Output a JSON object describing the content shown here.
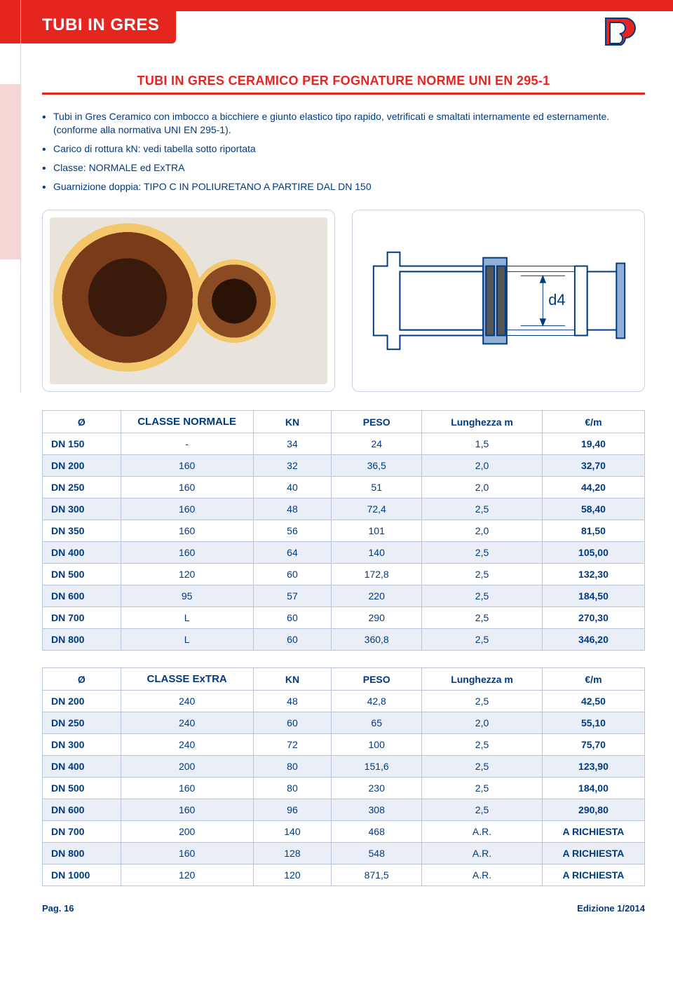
{
  "header": {
    "section_title": "TUBI IN GRES",
    "subtitle": "TUBI IN GRES CERAMICO PER FOGNATURE NORME UNI EN 295-1"
  },
  "bullets": [
    "Tubi in Gres Ceramico con imbocco a bicchiere e giunto elastico tipo rapido, vetrificati e smaltati internamente ed esternamente. (conforme alla normativa UNI EN 295-1).",
    "Carico di rottura kN: vedi tabella sotto riportata",
    "Classe: NORMALE ed ExTRA",
    "Guarnizione doppia: TIPO C IN POLIURETANO A PARTIRE DAL DN 150"
  ],
  "diagram": {
    "label": "d4"
  },
  "tables": {
    "normale": {
      "headers": [
        "Ø",
        "CLASSE NORMALE",
        "KN",
        "PESO",
        "Lunghezza m",
        "€/m"
      ],
      "rows": [
        [
          "DN 150",
          "-",
          "34",
          "24",
          "1,5",
          "19,40"
        ],
        [
          "DN 200",
          "160",
          "32",
          "36,5",
          "2,0",
          "32,70"
        ],
        [
          "DN 250",
          "160",
          "40",
          "51",
          "2,0",
          "44,20"
        ],
        [
          "DN 300",
          "160",
          "48",
          "72,4",
          "2,5",
          "58,40"
        ],
        [
          "DN 350",
          "160",
          "56",
          "101",
          "2,0",
          "81,50"
        ],
        [
          "DN 400",
          "160",
          "64",
          "140",
          "2,5",
          "105,00"
        ],
        [
          "DN 500",
          "120",
          "60",
          "172,8",
          "2,5",
          "132,30"
        ],
        [
          "DN 600",
          "95",
          "57",
          "220",
          "2,5",
          "184,50"
        ],
        [
          "DN 700",
          "L",
          "60",
          "290",
          "2,5",
          "270,30"
        ],
        [
          "DN 800",
          "L",
          "60",
          "360,8",
          "2,5",
          "346,20"
        ]
      ]
    },
    "extra": {
      "headers": [
        "Ø",
        "CLASSE ExTRA",
        "KN",
        "PESO",
        "Lunghezza m",
        "€/m"
      ],
      "rows": [
        [
          "DN 200",
          "240",
          "48",
          "42,8",
          "2,5",
          "42,50"
        ],
        [
          "DN 250",
          "240",
          "60",
          "65",
          "2,0",
          "55,10"
        ],
        [
          "DN 300",
          "240",
          "72",
          "100",
          "2,5",
          "75,70"
        ],
        [
          "DN 400",
          "200",
          "80",
          "151,6",
          "2,5",
          "123,90"
        ],
        [
          "DN 500",
          "160",
          "80",
          "230",
          "2,5",
          "184,00"
        ],
        [
          "DN 600",
          "160",
          "96",
          "308",
          "2,5",
          "290,80"
        ],
        [
          "DN 700",
          "200",
          "140",
          "468",
          "A.R.",
          "A RICHIESTA"
        ],
        [
          "DN 800",
          "160",
          "128",
          "548",
          "A.R.",
          "A RICHIESTA"
        ],
        [
          "DN 1000",
          "120",
          "120",
          "871,5",
          "A.R.",
          "A RICHIESTA"
        ]
      ]
    }
  },
  "footer": {
    "page_label": "Pag. 16",
    "edition": "Edizione 1/2014"
  },
  "colors": {
    "accent_red": "#e52620",
    "text_blue": "#003a80",
    "row_alt": "#eaeef6",
    "border": "#b9c4dd",
    "diagram_blue": "#90b0d8"
  }
}
